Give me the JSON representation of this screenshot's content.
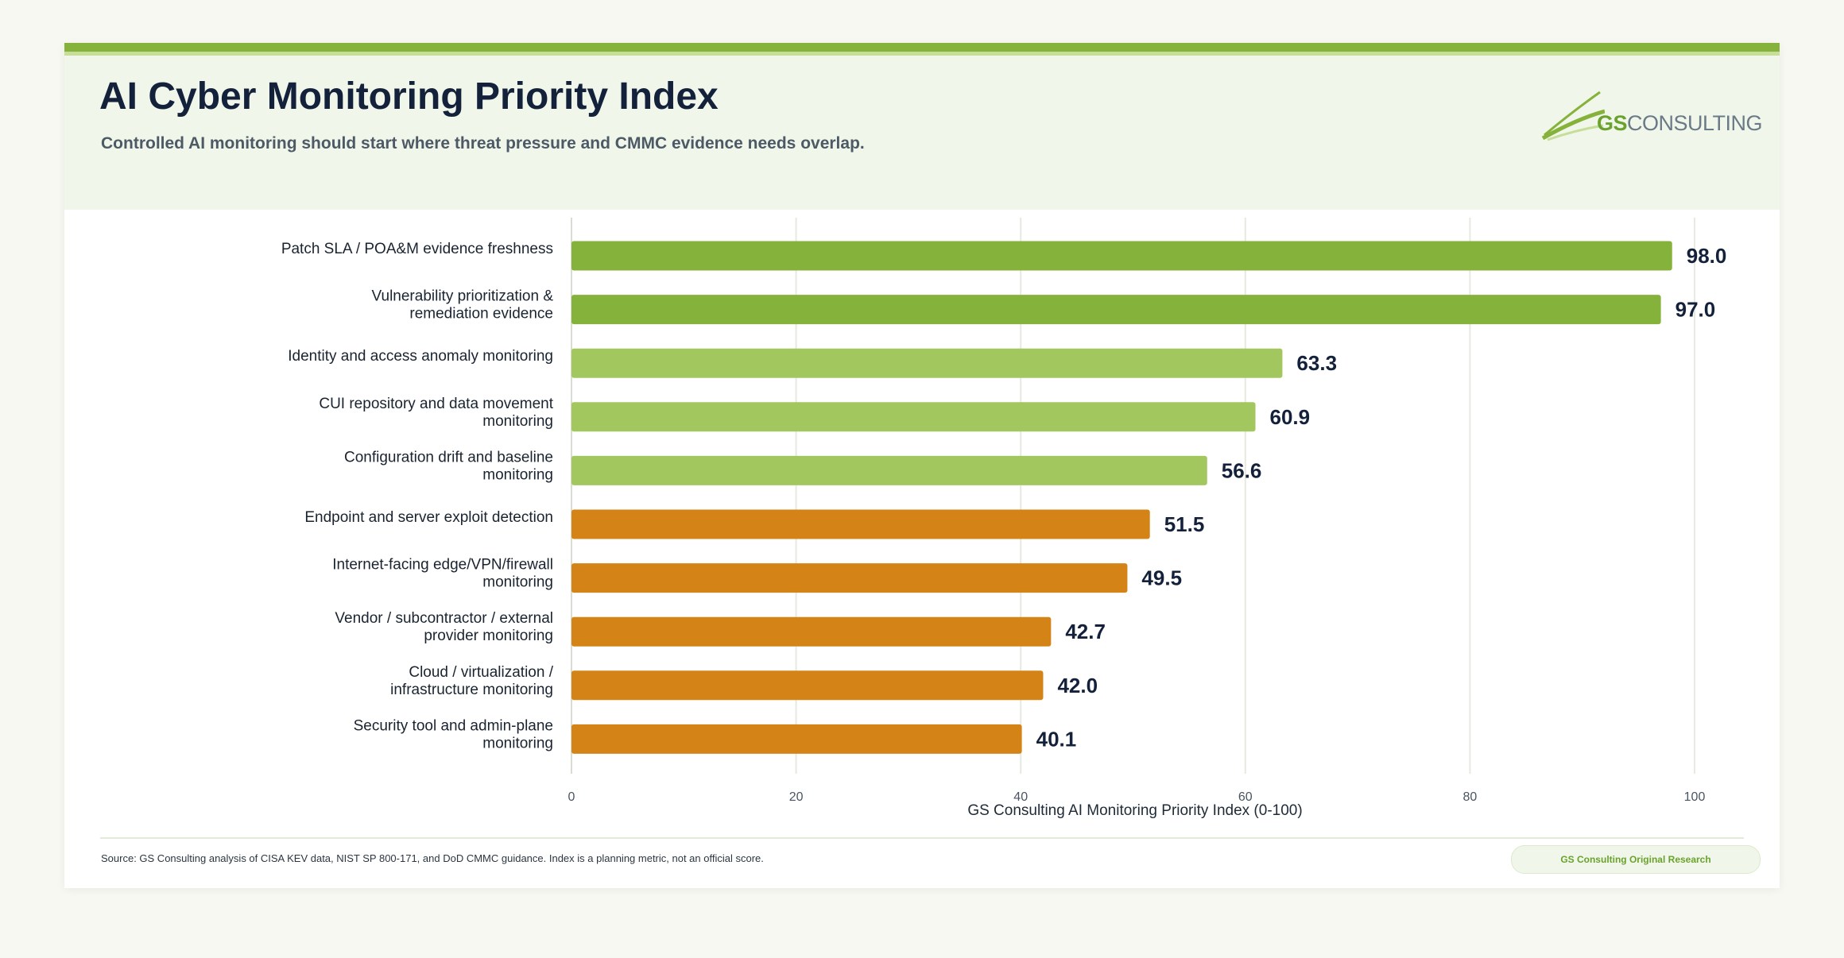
{
  "header": {
    "title": "AI Cyber Monitoring Priority Index",
    "subtitle": "Controlled AI monitoring should start where threat pressure and CMMC evidence needs overlap."
  },
  "logo": {
    "brand_primary": "GS",
    "brand_secondary": "CONSULTING",
    "icon": "swoosh-logo-icon"
  },
  "colors": {
    "accent_dark_green": "#85b23a",
    "accent_light_green": "#a3c75f",
    "accent_orange": "#d48416",
    "title": "#13213a"
  },
  "chart_data": {
    "type": "bar",
    "orientation": "horizontal",
    "title": "",
    "xlabel": "GS Consulting AI Monitoring Priority Index (0-100)",
    "ylabel": "",
    "xlim": [
      0,
      100
    ],
    "xticks": [
      0,
      20,
      40,
      60,
      80,
      100
    ],
    "grid": true,
    "legend": "none",
    "categories": [
      [
        "Patch SLA / POA&M evidence freshness"
      ],
      [
        "Vulnerability prioritization &",
        "remediation evidence"
      ],
      [
        "Identity and access anomaly monitoring"
      ],
      [
        "CUI repository and data movement",
        "monitoring"
      ],
      [
        "Configuration drift and baseline",
        "monitoring"
      ],
      [
        "Endpoint and server exploit detection"
      ],
      [
        "Internet-facing edge/VPN/firewall",
        "monitoring"
      ],
      [
        "Vendor / subcontractor / external",
        "provider monitoring"
      ],
      [
        "Cloud / virtualization /",
        "infrastructure monitoring"
      ],
      [
        "Security tool and admin-plane",
        "monitoring"
      ]
    ],
    "values": [
      98.0,
      97.0,
      63.3,
      60.9,
      56.6,
      51.5,
      49.5,
      42.7,
      42.0,
      40.1
    ],
    "value_labels": [
      "98.0",
      "97.0",
      "63.3",
      "60.9",
      "56.6",
      "51.5",
      "49.5",
      "42.7",
      "42.0",
      "40.1"
    ],
    "bar_colors": [
      "#85b23a",
      "#85b23a",
      "#a3c75f",
      "#a3c75f",
      "#a3c75f",
      "#d48416",
      "#d48416",
      "#d48416",
      "#d48416",
      "#d48416"
    ]
  },
  "footer": {
    "source": "Source: GS Consulting analysis of CISA KEV data, NIST SP 800-171, and DoD CMMC guidance. Index is a planning metric, not an official score.",
    "badge": "GS Consulting Original Research"
  }
}
